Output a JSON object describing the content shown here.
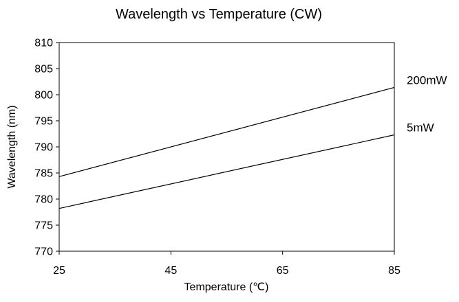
{
  "chart_data": {
    "type": "line",
    "title": "Wavelength vs Temperature (CW)",
    "xlabel": "Temperature (℃)",
    "ylabel": "Wavelength (nm)",
    "xlim": [
      25,
      85
    ],
    "ylim": [
      770,
      810
    ],
    "x_ticks": [
      "25",
      "45",
      "65",
      "85"
    ],
    "y_ticks": [
      "770",
      "775",
      "780",
      "785",
      "790",
      "795",
      "800",
      "805",
      "810"
    ],
    "grid": false,
    "legend": "none",
    "series": [
      {
        "name": "200mW",
        "x": [
          25,
          85
        ],
        "y": [
          784.3,
          801.4
        ],
        "color": "#000000"
      },
      {
        "name": "5mW",
        "x": [
          25,
          85
        ],
        "y": [
          778.2,
          792.3
        ],
        "color": "#000000"
      }
    ]
  }
}
